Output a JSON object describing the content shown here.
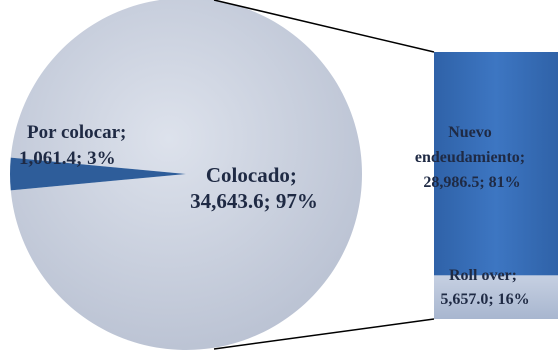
{
  "chart_data": {
    "type": "bar-of-pie",
    "pie": {
      "slices": [
        {
          "name": "Colocado",
          "value": 34643.6,
          "percent": 97,
          "label_value": "34,643.6",
          "label_pct": "97%",
          "color": "#c9cfdd"
        },
        {
          "name": "Por colocar",
          "value": 1061.4,
          "percent": 3,
          "label_value": "1,061.4",
          "label_pct": "3%",
          "color": "#2e5d9a"
        }
      ],
      "breakdown_of": "Colocado"
    },
    "bar": {
      "segments": [
        {
          "name": "Nuevo endeudamiento",
          "name_lines": [
            "Nuevo",
            "endeudamiento;"
          ],
          "value": 28986.5,
          "percent": 81,
          "label_value": "28,986.5",
          "label_pct": "81%",
          "color": "#3a6fb6"
        },
        {
          "name": "Roll over",
          "name_lines": [
            "Roll over;"
          ],
          "value": 5657.0,
          "percent": 16,
          "label_value": "5,657.0",
          "label_pct": "16%",
          "color": "#b7c3d8"
        }
      ]
    }
  }
}
